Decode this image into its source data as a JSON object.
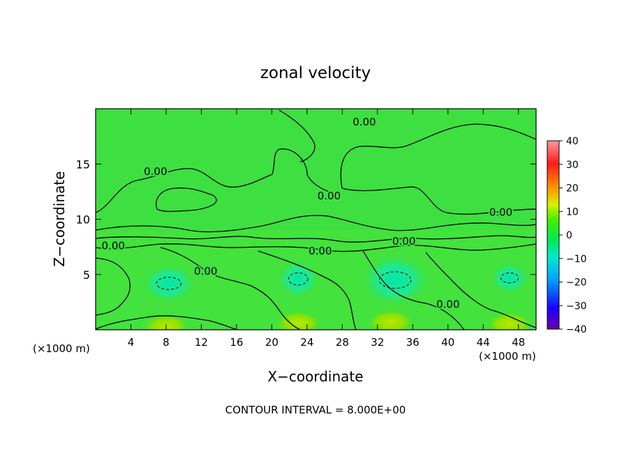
{
  "chart_data": {
    "type": "heatmap",
    "title": "zonal velocity",
    "xlabel": "X−coordinate",
    "ylabel": "Z−coordinate",
    "x_unit_left": "(×1000 m)",
    "x_unit_right": "(×1000 m)",
    "footer": "CONTOUR INTERVAL = 8.000E+00",
    "xlim": [
      0,
      50
    ],
    "ylim": [
      0,
      20
    ],
    "x_ticks": [
      4,
      8,
      12,
      16,
      20,
      24,
      28,
      32,
      36,
      40,
      44,
      48
    ],
    "y_ticks": [
      5,
      10,
      15
    ],
    "colorbar": {
      "range": [
        -40,
        40
      ],
      "ticks": [
        40,
        30,
        20,
        10,
        0,
        -10,
        -20,
        -30,
        -40
      ],
      "colors": [
        "#6a00a8",
        "#1a00ff",
        "#00a0ff",
        "#00e8d0",
        "#00e85a",
        "#44ee00",
        "#d8f000",
        "#ff8c00",
        "#ff1a1a",
        "#ff9a9a"
      ]
    },
    "contour_interval": 8.0,
    "contour_labels": [
      {
        "text": "0.00",
        "x": 6.8,
        "z": 14.0
      },
      {
        "text": "0.00",
        "x": 30.5,
        "z": 18.5
      },
      {
        "text": "0.00",
        "x": 26.5,
        "z": 11.8
      },
      {
        "text": "0.00",
        "x": 46.0,
        "z": 10.3
      },
      {
        "text": "0.00",
        "x": 2.0,
        "z": 7.3
      },
      {
        "text": "0.00",
        "x": 35.0,
        "z": 7.7
      },
      {
        "text": "0.00",
        "x": 25.5,
        "z": 6.8
      },
      {
        "text": "0.00",
        "x": 12.5,
        "z": 5.0
      },
      {
        "text": "0.00",
        "x": 40.0,
        "z": 2.0
      }
    ],
    "negative_cores": [
      {
        "x": 8.3,
        "z": 4.2,
        "rx": 1.4,
        "rz": 0.55
      },
      {
        "x": 23.0,
        "z": 4.6,
        "rx": 1.1,
        "rz": 0.55
      },
      {
        "x": 34.0,
        "z": 4.5,
        "rx": 1.8,
        "rz": 0.75
      },
      {
        "x": 47.0,
        "z": 4.7,
        "rx": 1.0,
        "rz": 0.45
      }
    ],
    "positive_cores": [
      {
        "x": 8.0,
        "z": 0.3
      },
      {
        "x": 23.0,
        "z": 0.6
      },
      {
        "x": 33.5,
        "z": 0.7
      },
      {
        "x": 47.0,
        "z": 0.5
      }
    ]
  }
}
